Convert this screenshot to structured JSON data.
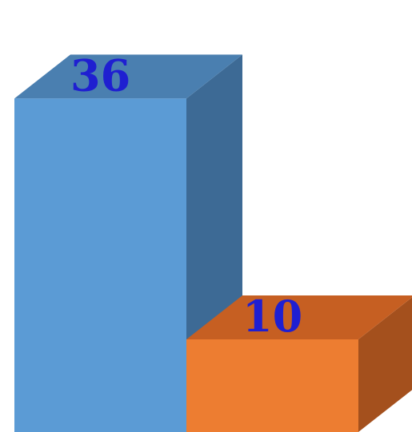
{
  "chart_data": {
    "type": "bar",
    "title": "",
    "xlabel": "",
    "ylabel": "",
    "values": [
      36,
      10
    ],
    "data_labels": [
      "36",
      "10"
    ],
    "colors": {
      "series": [
        {
          "front": "#5b9bd5",
          "top": "#4a7fb0",
          "side": "#3d6a95"
        },
        {
          "front": "#ed7d31",
          "top": "#c65f22",
          "side": "#a4501d"
        }
      ],
      "label": "#1f1fd1"
    }
  }
}
